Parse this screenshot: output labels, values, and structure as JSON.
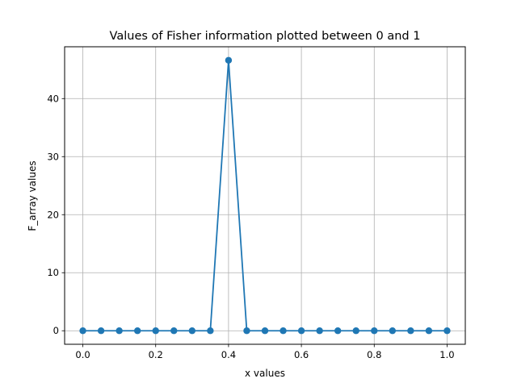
{
  "chart_data": {
    "type": "line",
    "title": "Values of Fisher information plotted between 0 and 1",
    "xlabel": "x values",
    "ylabel": "F_array values",
    "x": [
      0.0,
      0.05,
      0.1,
      0.15,
      0.2,
      0.25,
      0.3,
      0.35,
      0.4,
      0.45,
      0.5,
      0.55,
      0.6,
      0.65,
      0.7,
      0.75,
      0.8,
      0.85,
      0.9,
      0.95,
      1.0
    ],
    "series": [
      {
        "values": [
          0,
          0,
          0,
          0,
          0,
          0,
          0,
          0,
          46.6,
          0,
          0,
          0,
          0,
          0,
          0,
          0,
          0,
          0,
          0,
          0,
          0
        ],
        "color": "#1f77b4",
        "marker": "circle"
      }
    ],
    "xlim": [
      -0.05,
      1.05
    ],
    "ylim": [
      -2.33,
      48.93
    ],
    "x_ticks": [
      0.0,
      0.2,
      0.4,
      0.6,
      0.8,
      1.0
    ],
    "x_tick_labels": [
      "0.0",
      "0.2",
      "0.4",
      "0.6",
      "0.8",
      "1.0"
    ],
    "y_ticks": [
      0,
      10,
      20,
      30,
      40
    ],
    "y_tick_labels": [
      "0",
      "10",
      "20",
      "30",
      "40"
    ],
    "grid": true,
    "grid_color": "#b0b0b0"
  }
}
